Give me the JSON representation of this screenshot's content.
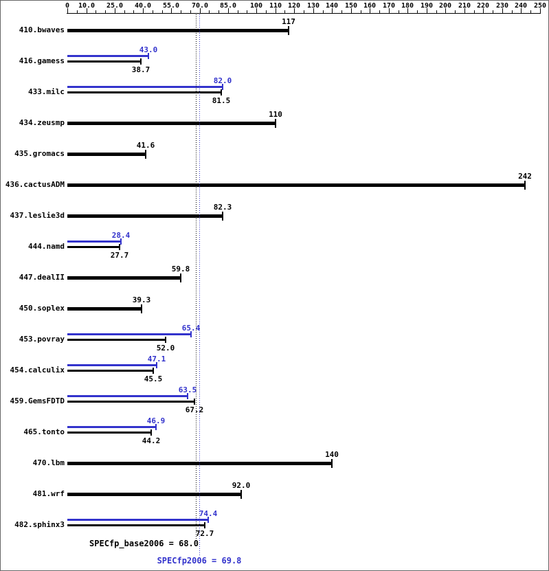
{
  "chart_data": {
    "type": "bar",
    "orientation": "horizontal",
    "xlim": [
      0,
      250
    ],
    "grid": false,
    "minor_tick_step": 5,
    "axis_tick_values": [
      0,
      10,
      25,
      40,
      55,
      70,
      85,
      100,
      110,
      120,
      130,
      140,
      150,
      160,
      170,
      180,
      190,
      200,
      210,
      220,
      230,
      240,
      250
    ],
    "axis_tick_labels": [
      "0",
      "10.0",
      "25.0",
      "40.0",
      "55.0",
      "70.0",
      "85.0",
      "100",
      "110",
      "120",
      "130",
      "140",
      "150",
      "160",
      "170",
      "180",
      "190",
      "200",
      "210",
      "220",
      "230",
      "240",
      "250"
    ],
    "series_meaning": {
      "base": "black bar",
      "peak": "blue bar"
    },
    "colors": {
      "base": "#000000",
      "peak": "#3333cc",
      "background": "#ffffff"
    },
    "benchmarks": [
      {
        "name": "410.bwaves",
        "base": 117,
        "base_label": "117",
        "peak": null,
        "peak_label": null
      },
      {
        "name": "416.gamess",
        "base": 38.7,
        "base_label": "38.7",
        "peak": 43.0,
        "peak_label": "43.0"
      },
      {
        "name": "433.milc",
        "base": 81.5,
        "base_label": "81.5",
        "peak": 82.0,
        "peak_label": "82.0"
      },
      {
        "name": "434.zeusmp",
        "base": 110,
        "base_label": "110",
        "peak": null,
        "peak_label": null
      },
      {
        "name": "435.gromacs",
        "base": 41.6,
        "base_label": "41.6",
        "peak": null,
        "peak_label": null
      },
      {
        "name": "436.cactusADM",
        "base": 242,
        "base_label": "242",
        "peak": null,
        "peak_label": null
      },
      {
        "name": "437.leslie3d",
        "base": 82.3,
        "base_label": "82.3",
        "peak": null,
        "peak_label": null
      },
      {
        "name": "444.namd",
        "base": 27.7,
        "base_label": "27.7",
        "peak": 28.4,
        "peak_label": "28.4"
      },
      {
        "name": "447.dealII",
        "base": 59.8,
        "base_label": "59.8",
        "peak": null,
        "peak_label": null
      },
      {
        "name": "450.soplex",
        "base": 39.3,
        "base_label": "39.3",
        "peak": null,
        "peak_label": null
      },
      {
        "name": "453.povray",
        "base": 52.0,
        "base_label": "52.0",
        "peak": 65.4,
        "peak_label": "65.4"
      },
      {
        "name": "454.calculix",
        "base": 45.5,
        "base_label": "45.5",
        "peak": 47.1,
        "peak_label": "47.1"
      },
      {
        "name": "459.GemsFDTD",
        "base": 67.2,
        "base_label": "67.2",
        "peak": 63.5,
        "peak_label": "63.5"
      },
      {
        "name": "465.tonto",
        "base": 44.2,
        "base_label": "44.2",
        "peak": 46.9,
        "peak_label": "46.9"
      },
      {
        "name": "470.lbm",
        "base": 140,
        "base_label": "140",
        "peak": null,
        "peak_label": null
      },
      {
        "name": "481.wrf",
        "base": 92.0,
        "base_label": "92.0",
        "peak": null,
        "peak_label": null
      },
      {
        "name": "482.sphinx3",
        "base": 72.7,
        "base_label": "72.7",
        "peak": 74.4,
        "peak_label": "74.4"
      }
    ],
    "reference_lines": [
      {
        "label": "SPECfp_base2006 = 68.0",
        "value": 68.0,
        "color": "#000000"
      },
      {
        "label": "SPECfp2006 = 69.8",
        "value": 69.8,
        "color": "#3333cc"
      }
    ]
  }
}
